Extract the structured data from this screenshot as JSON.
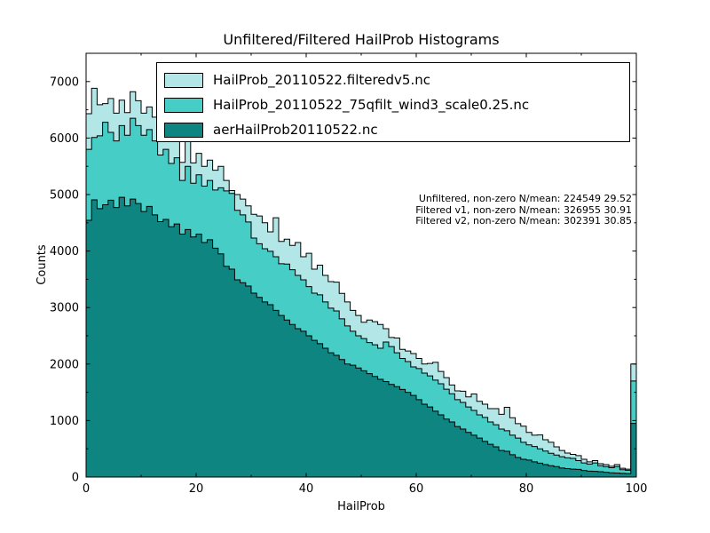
{
  "figure": {
    "title": "Unfiltered/Filtered HailProb Histograms"
  },
  "axes": {
    "xlabel": "HailProb",
    "ylabel": "Counts"
  },
  "legend": {
    "entries": [
      {
        "label": "HailProb_20110522.filteredv5.nc"
      },
      {
        "label": "HailProb_20110522_75qfilt_wind3_scale0.25.nc"
      },
      {
        "label": "aerHailProb20110522.nc"
      }
    ]
  },
  "annotation": {
    "lines": [
      "Unfiltered, non-zero N/mean: 224549 29.52",
      "Filtered v1, non-zero N/mean: 326955 30.91",
      "Filtered v2, non-zero N/mean: 302391 30.85"
    ]
  },
  "chart_data": {
    "type": "histogram",
    "title": "Unfiltered/Filtered HailProb Histograms",
    "xlabel": "HailProb",
    "ylabel": "Counts",
    "xlim": [
      0,
      100
    ],
    "ylim": [
      0,
      7500
    ],
    "x_major_ticks": [
      0,
      20,
      40,
      60,
      80,
      100
    ],
    "y_major_ticks": [
      0,
      1000,
      2000,
      3000,
      4000,
      5000,
      6000,
      7000
    ],
    "x_minor_step": 10,
    "y_minor_step": 500,
    "grid": false,
    "legend_position": "upper left",
    "bin_start": 0,
    "bin_width": 1,
    "series": [
      {
        "name": "HailProb_20110522.filteredv5.nc",
        "stat": "Filtered v1, non-zero N/mean: 326955 30.91",
        "color": "#b3e6e6",
        "edge_color": "#000000",
        "values": [
          6430,
          6880,
          6590,
          6610,
          6700,
          6440,
          6670,
          6450,
          6820,
          6660,
          6440,
          6550,
          6370,
          6100,
          6230,
          5940,
          6090,
          5570,
          5940,
          5560,
          5730,
          5500,
          5610,
          5430,
          5500,
          5250,
          5070,
          5000,
          4920,
          4800,
          4650,
          4620,
          4500,
          4340,
          4590,
          4170,
          4210,
          4100,
          4150,
          3900,
          3960,
          3680,
          3750,
          3570,
          3460,
          3450,
          3250,
          3100,
          2950,
          2860,
          2740,
          2780,
          2750,
          2700,
          2625,
          2470,
          2460,
          2260,
          2230,
          2185,
          2100,
          2000,
          2010,
          2030,
          1870,
          1760,
          1630,
          1525,
          1520,
          1420,
          1470,
          1340,
          1290,
          1210,
          1210,
          1110,
          1235,
          1050,
          945,
          900,
          790,
          740,
          745,
          660,
          615,
          535,
          470,
          425,
          400,
          380,
          315,
          270,
          290,
          235,
          220,
          190,
          220,
          155,
          140,
          2000
        ]
      },
      {
        "name": "HailProb_20110522_75qfilt_wind3_scale0.25.nc",
        "stat": "Filtered v2, non-zero N/mean: 302391 30.85",
        "color": "#46cdc5",
        "edge_color": "#000000",
        "values": [
          5800,
          6010,
          6040,
          6280,
          6100,
          5950,
          6220,
          6050,
          6350,
          6220,
          6050,
          6150,
          5950,
          5700,
          5800,
          5550,
          5650,
          5250,
          5500,
          5200,
          5350,
          5150,
          5250,
          5080,
          5120,
          5065,
          5020,
          4720,
          4640,
          4515,
          4230,
          4130,
          4040,
          3995,
          3900,
          3775,
          3770,
          3670,
          3570,
          3490,
          3370,
          3255,
          3225,
          3100,
          2990,
          2940,
          2800,
          2675,
          2580,
          2500,
          2450,
          2380,
          2340,
          2280,
          2390,
          2310,
          2200,
          2100,
          2045,
          1950,
          1920,
          1840,
          1790,
          1715,
          1650,
          1555,
          1475,
          1370,
          1320,
          1240,
          1180,
          1100,
          1055,
          975,
          925,
          850,
          820,
          740,
          690,
          615,
          570,
          540,
          500,
          460,
          420,
          390,
          360,
          340,
          330,
          290,
          250,
          230,
          250,
          200,
          185,
          165,
          185,
          130,
          120,
          1700
        ]
      },
      {
        "name": "aerHailProb20110522.nc",
        "stat": "Unfiltered, non-zero N/mean: 224549 29.52",
        "color": "#0e8580",
        "edge_color": "#000000",
        "values": [
          4545,
          4905,
          4750,
          4820,
          4900,
          4770,
          4950,
          4800,
          4920,
          4840,
          4700,
          4790,
          4640,
          4520,
          4560,
          4430,
          4480,
          4300,
          4380,
          4250,
          4300,
          4150,
          4200,
          4050,
          3950,
          3730,
          3680,
          3490,
          3440,
          3380,
          3255,
          3180,
          3100,
          3050,
          2950,
          2860,
          2780,
          2700,
          2625,
          2580,
          2500,
          2420,
          2360,
          2280,
          2200,
          2155,
          2080,
          2000,
          1980,
          1930,
          1880,
          1830,
          1780,
          1730,
          1690,
          1640,
          1600,
          1550,
          1500,
          1445,
          1370,
          1290,
          1240,
          1165,
          1100,
          1025,
          975,
          895,
          850,
          790,
          740,
          690,
          630,
          580,
          535,
          470,
          455,
          395,
          345,
          315,
          300,
          270,
          245,
          220,
          200,
          185,
          160,
          150,
          140,
          135,
          115,
          105,
          100,
          95,
          85,
          75,
          70,
          65,
          60,
          950
        ]
      }
    ]
  }
}
